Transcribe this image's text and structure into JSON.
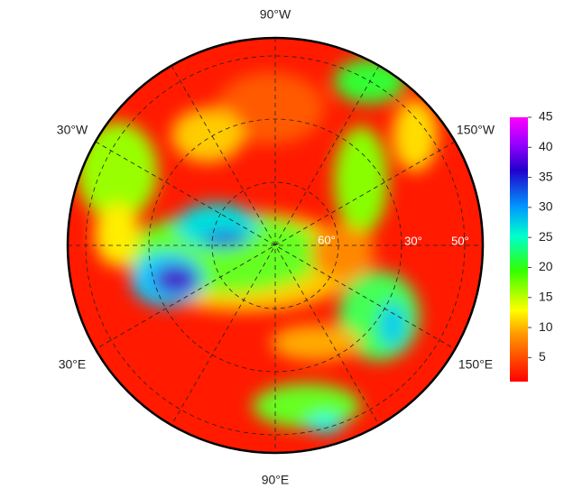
{
  "map": {
    "longitude_labels": [
      "90°W",
      "30°W",
      "150°W",
      "30°E",
      "150°E",
      "90°E"
    ],
    "latitude_labels": [
      "60°",
      "30°",
      "50°"
    ],
    "colorbar": {
      "range": [
        1,
        45
      ],
      "ticks": [
        5,
        10,
        15,
        20,
        25,
        30,
        35,
        40,
        45
      ]
    }
  }
}
